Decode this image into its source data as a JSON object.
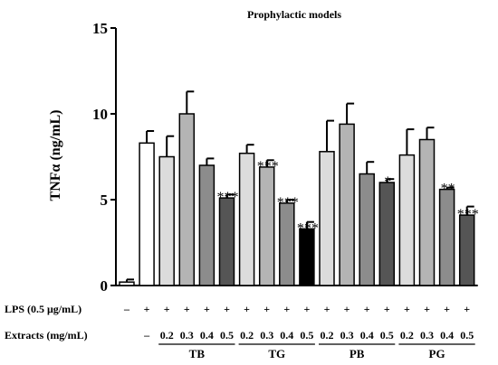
{
  "chart_data": {
    "type": "bar",
    "title": "Prophylactic models",
    "ylabel": "TNFα (ng/mL)",
    "ylim": [
      0,
      15
    ],
    "yticks": [
      0,
      5,
      10,
      15
    ],
    "grid": false,
    "row_labels": {
      "lps": "LPS (0.5 μg/mL)",
      "extracts": "Extracts (mg/mL)"
    },
    "bars": [
      {
        "lps": "–",
        "extract": "",
        "value": 0.2,
        "error": 0.15,
        "fill": "#ffffff",
        "sig": ""
      },
      {
        "lps": "+",
        "extract": "–",
        "value": 8.3,
        "error": 0.7,
        "fill": "#ffffff",
        "sig": ""
      },
      {
        "lps": "+",
        "extract": "0.2",
        "value": 7.5,
        "error": 1.2,
        "fill": "#dcdcdc",
        "sig": ""
      },
      {
        "lps": "+",
        "extract": "0.3",
        "value": 10.0,
        "error": 1.3,
        "fill": "#b4b4b4",
        "sig": ""
      },
      {
        "lps": "+",
        "extract": "0.4",
        "value": 7.0,
        "error": 0.4,
        "fill": "#8c8c8c",
        "sig": ""
      },
      {
        "lps": "+",
        "extract": "0.5",
        "value": 5.1,
        "error": 0.2,
        "fill": "#555555",
        "sig": "***"
      },
      {
        "lps": "+",
        "extract": "0.2",
        "value": 7.7,
        "error": 0.5,
        "fill": "#dcdcdc",
        "sig": ""
      },
      {
        "lps": "+",
        "extract": "0.3",
        "value": 6.9,
        "error": 0.4,
        "fill": "#b4b4b4",
        "sig": "***"
      },
      {
        "lps": "+",
        "extract": "0.4",
        "value": 4.8,
        "error": 0.2,
        "fill": "#8c8c8c",
        "sig": "***"
      },
      {
        "lps": "+",
        "extract": "0.5",
        "value": 3.3,
        "error": 0.4,
        "fill": "#000000",
        "sig": "***"
      },
      {
        "lps": "+",
        "extract": "0.2",
        "value": 7.8,
        "error": 1.8,
        "fill": "#dcdcdc",
        "sig": ""
      },
      {
        "lps": "+",
        "extract": "0.3",
        "value": 9.4,
        "error": 1.2,
        "fill": "#b4b4b4",
        "sig": ""
      },
      {
        "lps": "+",
        "extract": "0.4",
        "value": 6.5,
        "error": 0.7,
        "fill": "#8c8c8c",
        "sig": ""
      },
      {
        "lps": "+",
        "extract": "0.5",
        "value": 6.0,
        "error": 0.2,
        "fill": "#555555",
        "sig": "*"
      },
      {
        "lps": "+",
        "extract": "0.2",
        "value": 7.6,
        "error": 1.5,
        "fill": "#dcdcdc",
        "sig": ""
      },
      {
        "lps": "+",
        "extract": "0.3",
        "value": 8.5,
        "error": 0.7,
        "fill": "#b4b4b4",
        "sig": ""
      },
      {
        "lps": "+",
        "extract": "0.4",
        "value": 5.6,
        "error": 0.1,
        "fill": "#8c8c8c",
        "sig": "**"
      },
      {
        "lps": "+",
        "extract": "0.5",
        "value": 4.1,
        "error": 0.5,
        "fill": "#555555",
        "sig": "***"
      }
    ],
    "groups": [
      {
        "label": "TB",
        "from": 2,
        "to": 5
      },
      {
        "label": "TG",
        "from": 6,
        "to": 9
      },
      {
        "label": "PB",
        "from": 10,
        "to": 13
      },
      {
        "label": "PG",
        "from": 14,
        "to": 17
      }
    ]
  }
}
